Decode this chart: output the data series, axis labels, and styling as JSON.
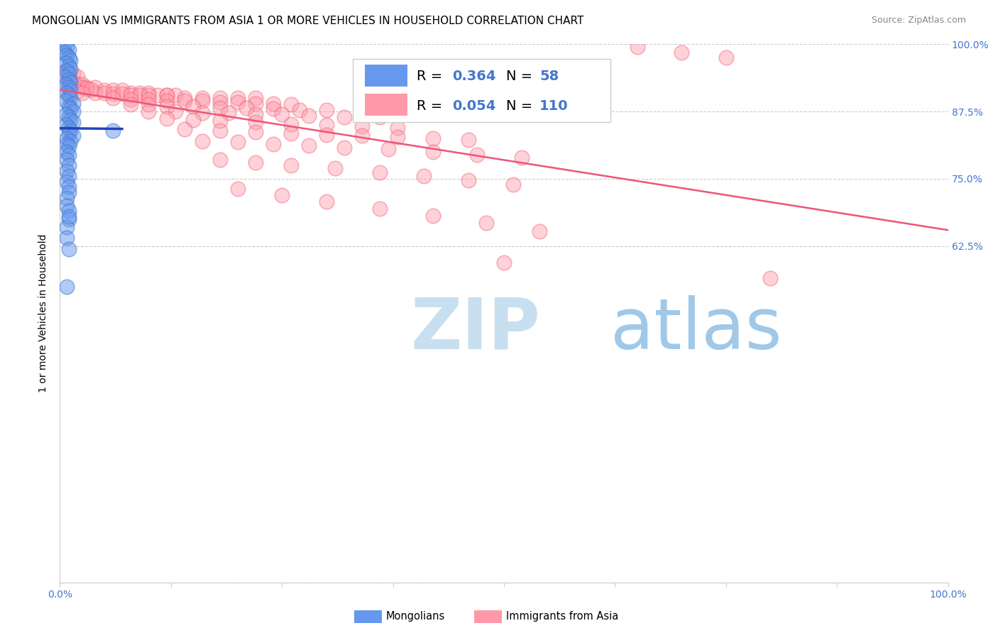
{
  "title": "MONGOLIAN VS IMMIGRANTS FROM ASIA 1 OR MORE VEHICLES IN HOUSEHOLD CORRELATION CHART",
  "source": "Source: ZipAtlas.com",
  "ylabel": "1 or more Vehicles in Household",
  "xlim": [
    0.0,
    1.0
  ],
  "ylim": [
    0.0,
    1.0
  ],
  "yticks": [
    0.0,
    0.625,
    0.75,
    0.875,
    1.0
  ],
  "ytick_labels_right": [
    "",
    "62.5%",
    "75.0%",
    "87.5%",
    "100.0%"
  ],
  "xticks": [
    0.0,
    0.125,
    0.25,
    0.375,
    0.5,
    0.625,
    0.75,
    0.875,
    1.0
  ],
  "xtick_labels": [
    "0.0%",
    "",
    "",
    "",
    "",
    "",
    "",
    "",
    "100.0%"
  ],
  "blue_R": 0.364,
  "blue_N": 58,
  "pink_R": 0.054,
  "pink_N": 110,
  "blue_color": "#6699ee",
  "pink_color": "#ff99aa",
  "blue_edge_color": "#4477cc",
  "pink_edge_color": "#ee6677",
  "blue_line_color": "#2244bb",
  "pink_line_color": "#ee5577",
  "watermark_zip_color": "#c8dff0",
  "watermark_atlas_color": "#a0c8e8",
  "grid_color": "#cccccc",
  "background_color": "#ffffff",
  "tick_color": "#4477cc",
  "title_fontsize": 11,
  "source_fontsize": 9,
  "axis_label_fontsize": 10,
  "tick_fontsize": 10,
  "legend_fontsize": 14,
  "blue_scatter_x": [
    0.005,
    0.008,
    0.01,
    0.005,
    0.008,
    0.01,
    0.012,
    0.007,
    0.01,
    0.012,
    0.008,
    0.01,
    0.005,
    0.01,
    0.012,
    0.007,
    0.01,
    0.012,
    0.008,
    0.01,
    0.012,
    0.007,
    0.015,
    0.01,
    0.012,
    0.015,
    0.007,
    0.01,
    0.012,
    0.015,
    0.007,
    0.01,
    0.012,
    0.06,
    0.01,
    0.015,
    0.008,
    0.012,
    0.008,
    0.01,
    0.008,
    0.01,
    0.008,
    0.01,
    0.008,
    0.01,
    0.008,
    0.01,
    0.01,
    0.008,
    0.008,
    0.01,
    0.01,
    0.008,
    0.008,
    0.01,
    0.01,
    0.008
  ],
  "blue_scatter_y": [
    1.0,
    0.995,
    0.99,
    0.985,
    0.98,
    0.975,
    0.97,
    0.965,
    0.96,
    0.955,
    0.95,
    0.945,
    0.94,
    0.935,
    0.93,
    0.925,
    0.92,
    0.915,
    0.91,
    0.905,
    0.9,
    0.895,
    0.89,
    0.885,
    0.88,
    0.875,
    0.87,
    0.865,
    0.86,
    0.855,
    0.85,
    0.845,
    0.84,
    0.84,
    0.835,
    0.83,
    0.825,
    0.82,
    0.815,
    0.81,
    0.8,
    0.795,
    0.785,
    0.775,
    0.765,
    0.755,
    0.745,
    0.735,
    0.725,
    0.715,
    0.7,
    0.69,
    0.675,
    0.66,
    0.64,
    0.62,
    0.68,
    0.55
  ],
  "pink_scatter_x": [
    0.005,
    0.01,
    0.015,
    0.02,
    0.005,
    0.01,
    0.015,
    0.02,
    0.025,
    0.03,
    0.04,
    0.05,
    0.06,
    0.07,
    0.08,
    0.09,
    0.1,
    0.11,
    0.12,
    0.13,
    0.04,
    0.05,
    0.06,
    0.07,
    0.08,
    0.09,
    0.1,
    0.12,
    0.14,
    0.16,
    0.18,
    0.2,
    0.22,
    0.06,
    0.08,
    0.1,
    0.12,
    0.14,
    0.16,
    0.18,
    0.2,
    0.22,
    0.24,
    0.26,
    0.08,
    0.1,
    0.12,
    0.15,
    0.18,
    0.21,
    0.24,
    0.27,
    0.3,
    0.1,
    0.13,
    0.16,
    0.19,
    0.22,
    0.25,
    0.28,
    0.32,
    0.36,
    0.12,
    0.15,
    0.18,
    0.22,
    0.26,
    0.3,
    0.34,
    0.38,
    0.14,
    0.18,
    0.22,
    0.26,
    0.3,
    0.34,
    0.38,
    0.42,
    0.46,
    0.16,
    0.2,
    0.24,
    0.28,
    0.32,
    0.37,
    0.42,
    0.47,
    0.52,
    0.18,
    0.22,
    0.26,
    0.31,
    0.36,
    0.41,
    0.46,
    0.51,
    0.2,
    0.25,
    0.3,
    0.36,
    0.42,
    0.48,
    0.54,
    0.025,
    0.03,
    0.035,
    0.02,
    0.025,
    0.5,
    0.8,
    0.65,
    0.7,
    0.75
  ],
  "pink_scatter_y": [
    0.95,
    0.945,
    0.945,
    0.94,
    0.935,
    0.935,
    0.93,
    0.925,
    0.925,
    0.92,
    0.92,
    0.915,
    0.915,
    0.915,
    0.91,
    0.91,
    0.91,
    0.905,
    0.905,
    0.905,
    0.91,
    0.91,
    0.908,
    0.908,
    0.905,
    0.905,
    0.905,
    0.905,
    0.9,
    0.9,
    0.9,
    0.9,
    0.9,
    0.9,
    0.898,
    0.898,
    0.895,
    0.895,
    0.895,
    0.892,
    0.892,
    0.89,
    0.89,
    0.888,
    0.888,
    0.888,
    0.885,
    0.885,
    0.882,
    0.882,
    0.88,
    0.878,
    0.878,
    0.875,
    0.875,
    0.873,
    0.873,
    0.87,
    0.87,
    0.868,
    0.865,
    0.865,
    0.862,
    0.86,
    0.858,
    0.855,
    0.852,
    0.85,
    0.848,
    0.845,
    0.842,
    0.84,
    0.837,
    0.835,
    0.832,
    0.83,
    0.828,
    0.825,
    0.822,
    0.82,
    0.818,
    0.815,
    0.812,
    0.808,
    0.805,
    0.8,
    0.795,
    0.79,
    0.785,
    0.78,
    0.775,
    0.77,
    0.762,
    0.755,
    0.748,
    0.74,
    0.732,
    0.72,
    0.708,
    0.695,
    0.682,
    0.668,
    0.652,
    0.92,
    0.918,
    0.916,
    0.912,
    0.91,
    0.595,
    0.565,
    0.995,
    0.985,
    0.975
  ]
}
